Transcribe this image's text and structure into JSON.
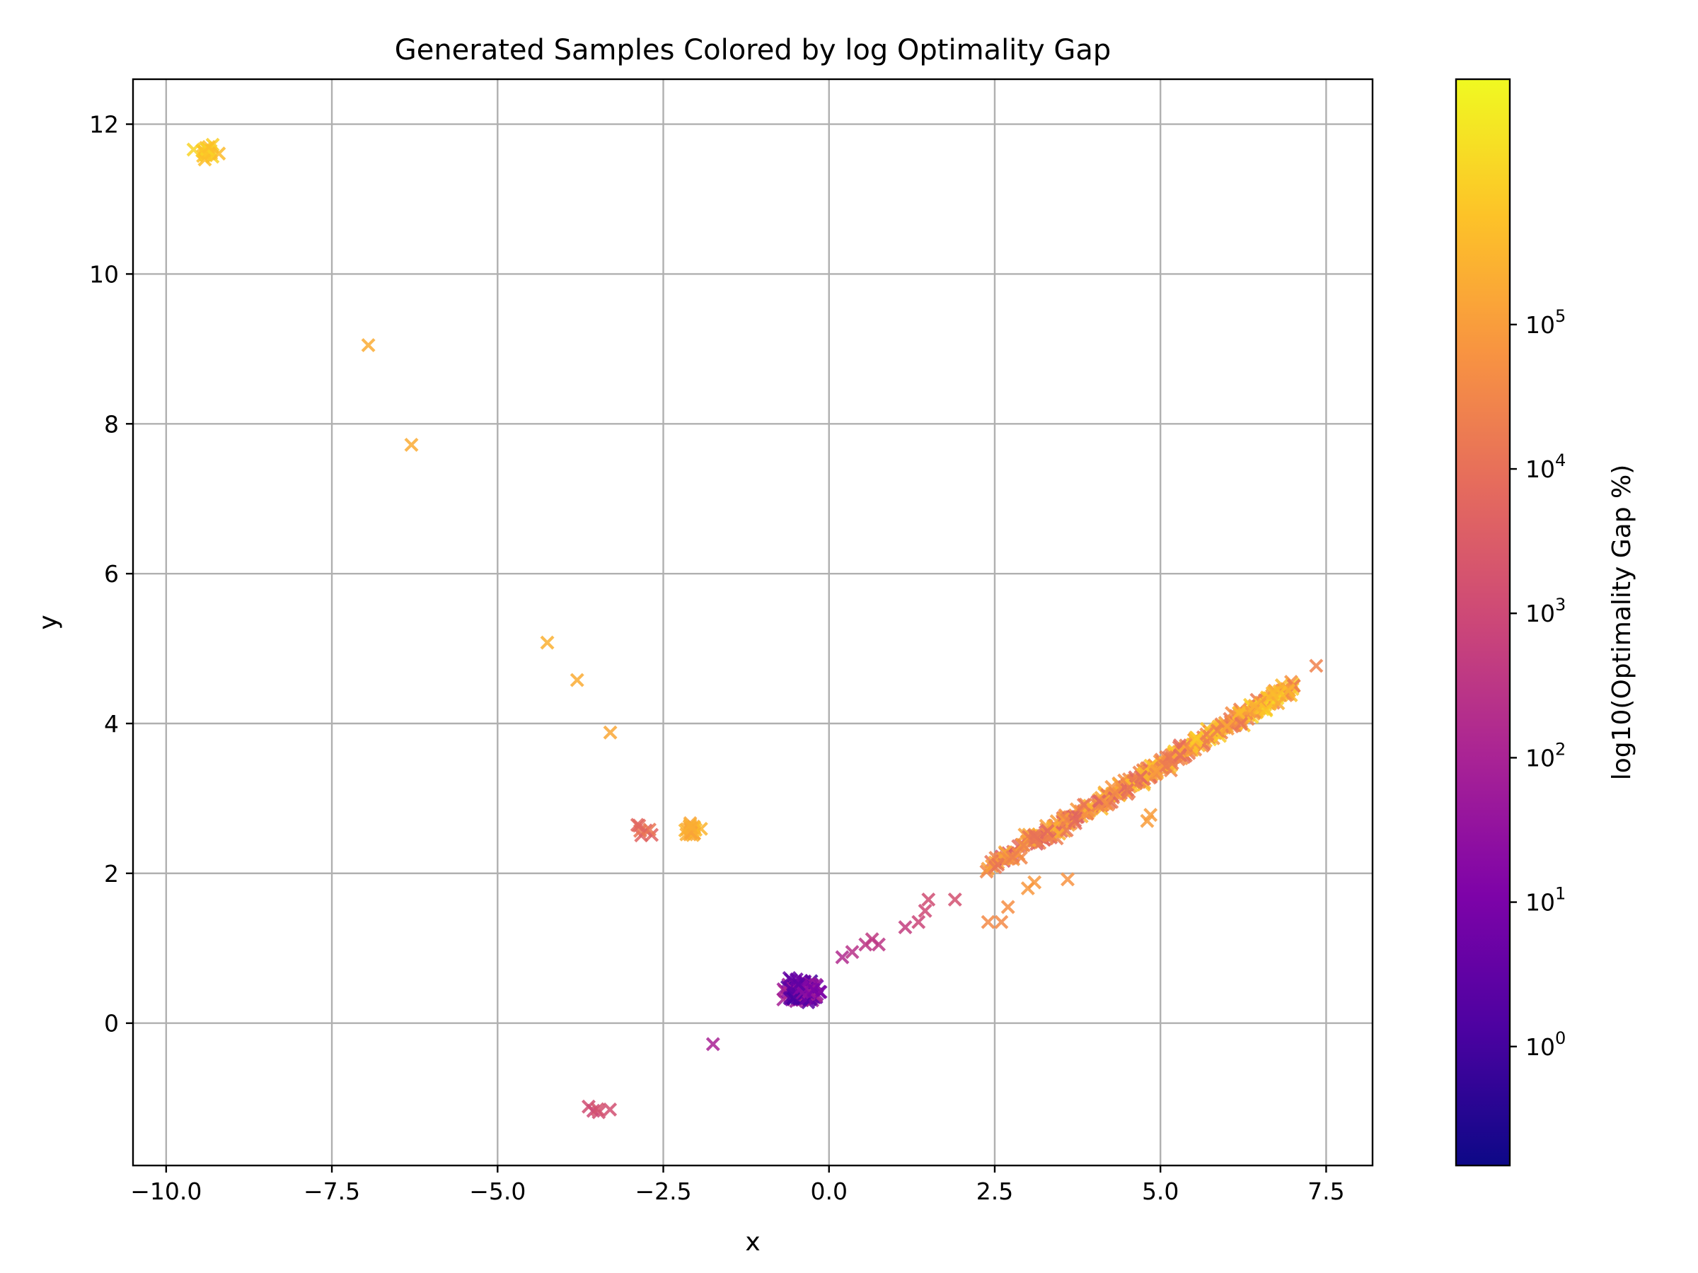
{
  "chart_data": {
    "type": "scatter",
    "title": "Generated Samples Colored by log Optimality Gap",
    "xlabel": "x",
    "ylabel": "y",
    "xlim": [
      -10.5,
      8.2
    ],
    "ylim": [
      -1.9,
      12.6
    ],
    "x_ticks": [
      -10.0,
      -7.5,
      -5.0,
      -2.5,
      0.0,
      2.5,
      5.0,
      7.5
    ],
    "x_tick_labels": [
      "−10.0",
      "−7.5",
      "−5.0",
      "−2.5",
      "0.0",
      "2.5",
      "5.0",
      "7.5"
    ],
    "y_ticks": [
      0,
      2,
      4,
      6,
      8,
      10,
      12
    ],
    "y_tick_labels": [
      "0",
      "2",
      "4",
      "6",
      "8",
      "10",
      "12"
    ],
    "grid": true,
    "marker": "x",
    "colormap": "plasma",
    "colorbar": {
      "label": "log10(Optimality Gap %)",
      "scale": "log",
      "range": [
        0.15,
        5000000
      ],
      "ticks": [
        1,
        10,
        100,
        1000,
        10000,
        100000
      ],
      "tick_bases": [
        "10",
        "10",
        "10",
        "10",
        "10",
        "10"
      ],
      "tick_exponents": [
        "0",
        "1",
        "2",
        "3",
        "4",
        "5"
      ]
    },
    "clusters": [
      {
        "name": "top-left",
        "center": [
          -9.4,
          11.65
        ],
        "spread": [
          0.18,
          0.12
        ],
        "count": 20,
        "gap_log10": [
          5.6,
          6.1
        ]
      },
      {
        "name": "origin",
        "center": [
          -0.4,
          0.42
        ],
        "spread": [
          0.2,
          0.14
        ],
        "count": 160,
        "gap_log10": [
          0.0,
          2.2
        ]
      },
      {
        "name": "mid-left",
        "center": [
          -2.1,
          2.58
        ],
        "spread": [
          0.12,
          0.08
        ],
        "count": 22,
        "gap_log10": [
          5.0,
          5.6
        ]
      },
      {
        "name": "mid-left-b",
        "center": [
          -2.75,
          2.6
        ],
        "spread": [
          0.1,
          0.1
        ],
        "count": 7,
        "gap_log10": [
          3.6,
          4.2
        ]
      },
      {
        "name": "bottom",
        "center": [
          -3.5,
          -1.15
        ],
        "spread": [
          0.2,
          0.06
        ],
        "count": 5,
        "gap_log10": [
          3.0,
          3.6
        ]
      }
    ],
    "band": {
      "from": [
        2.3,
        2.0
      ],
      "to": [
        7.0,
        4.5
      ],
      "count": 380,
      "gap_log10": [
        3.2,
        6.3
      ],
      "jitter": 0.1
    },
    "bridge_points": [
      {
        "x": 0.2,
        "y": 0.88,
        "g": 2.2
      },
      {
        "x": 0.35,
        "y": 0.95,
        "g": 2.4
      },
      {
        "x": 0.55,
        "y": 1.05,
        "g": 2.5
      },
      {
        "x": 0.65,
        "y": 1.12,
        "g": 2.6
      },
      {
        "x": 0.75,
        "y": 1.05,
        "g": 2.5
      },
      {
        "x": 1.15,
        "y": 1.28,
        "g": 2.7
      },
      {
        "x": 1.35,
        "y": 1.35,
        "g": 2.9
      },
      {
        "x": 1.45,
        "y": 1.5,
        "g": 3.0
      },
      {
        "x": 1.5,
        "y": 1.65,
        "g": 3.1
      },
      {
        "x": 1.9,
        "y": 1.65,
        "g": 3.2
      },
      {
        "x": 2.6,
        "y": 1.35,
        "g": 4.6
      },
      {
        "x": 2.7,
        "y": 1.55,
        "g": 4.7
      },
      {
        "x": 2.4,
        "y": 1.35,
        "g": 4.6
      },
      {
        "x": 3.0,
        "y": 1.8,
        "g": 4.9
      },
      {
        "x": 3.1,
        "y": 1.88,
        "g": 4.9
      },
      {
        "x": 3.6,
        "y": 1.92,
        "g": 4.8
      },
      {
        "x": 4.8,
        "y": 2.7,
        "g": 5.0
      },
      {
        "x": 4.85,
        "y": 2.78,
        "g": 5.0
      }
    ],
    "points": [
      {
        "x": -6.95,
        "y": 9.05,
        "g": 5.3
      },
      {
        "x": -6.3,
        "y": 7.72,
        "g": 5.3
      },
      {
        "x": -4.25,
        "y": 5.08,
        "g": 5.4
      },
      {
        "x": -3.8,
        "y": 4.58,
        "g": 5.3
      },
      {
        "x": -3.3,
        "y": 3.88,
        "g": 5.2
      },
      {
        "x": -1.75,
        "y": -0.28,
        "g": 2.0
      },
      {
        "x": 7.35,
        "y": 4.77,
        "g": 4.4
      }
    ]
  }
}
